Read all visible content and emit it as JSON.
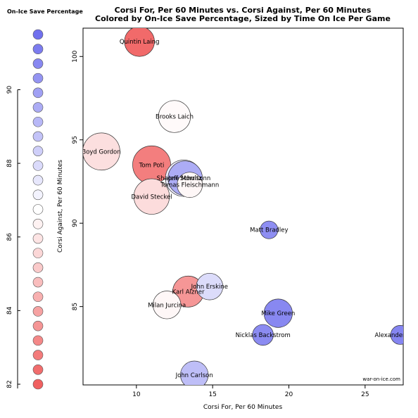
{
  "chart_data": {
    "type": "scatter",
    "title": "Corsi For, Per 60 Minutes vs. Corsi Against, Per 60 Minutes",
    "subtitle": "Colored by On-Ice Save Percentage, Sized by Time On Ice Per Game",
    "xlabel": "Corsi For, Per 60 Minutes",
    "ylabel": "Corsi Against, Per 60 Minutes",
    "xlim": [
      6.5,
      27.5
    ],
    "ylim": [
      80.3,
      101.7
    ],
    "x_ticks": [
      10,
      15,
      20,
      25
    ],
    "y_ticks": [
      85,
      90,
      95,
      100
    ],
    "credit": "war-on-ice.com",
    "legend": {
      "title": "On-Ice Save Percentage",
      "ticks": [
        82,
        84,
        86,
        88,
        90
      ],
      "range": [
        82,
        91.5
      ],
      "steps": 25
    },
    "points": [
      {
        "name": "Quintin Laing",
        "x": 10.2,
        "y": 100.9,
        "sv": 82.3,
        "toi": 0.55
      },
      {
        "name": "Brooks Laich",
        "x": 12.5,
        "y": 96.4,
        "sv": 86.6,
        "toi": 0.65
      },
      {
        "name": "Boyd Gordon",
        "x": 7.7,
        "y": 94.3,
        "sv": 85.8,
        "toi": 0.95
      },
      {
        "name": "Tom Poti",
        "x": 11.0,
        "y": 93.5,
        "sv": 82.9,
        "toi": 1.0
      },
      {
        "name": "Shaone Morrisonn",
        "x": 13.1,
        "y": 92.7,
        "sv": 87.4,
        "toi": 0.9
      },
      {
        "name": "Jeff Schultz",
        "x": 13.2,
        "y": 92.7,
        "sv": 89.5,
        "toi": 0.78
      },
      {
        "name": "Tomas Fleischmann",
        "x": 13.5,
        "y": 92.3,
        "sv": 86.5,
        "toi": 0.35
      },
      {
        "name": "David Steckel",
        "x": 11.0,
        "y": 91.6,
        "sv": 85.7,
        "toi": 0.85
      },
      {
        "name": "Matt Bradley",
        "x": 18.7,
        "y": 89.6,
        "sv": 90.5,
        "toi": 0.12
      },
      {
        "name": "John Erskine",
        "x": 14.8,
        "y": 86.2,
        "sv": 87.9,
        "toi": 0.4
      },
      {
        "name": "Karl Alzner",
        "x": 13.4,
        "y": 85.9,
        "sv": 83.6,
        "toi": 0.6
      },
      {
        "name": "Milan Jurcina",
        "x": 12.0,
        "y": 85.1,
        "sv": 86.5,
        "toi": 0.45
      },
      {
        "name": "Mike Green",
        "x": 19.3,
        "y": 84.6,
        "sv": 90.7,
        "toi": 0.48
      },
      {
        "name": "Nicklas Backstrom",
        "x": 18.3,
        "y": 83.3,
        "sv": 90.6,
        "toi": 0.2
      },
      {
        "name": "Alexander Semin",
        "x": 27.3,
        "y": 83.3,
        "sv": 90.8,
        "toi": 0.15
      },
      {
        "name": "John Carlson",
        "x": 13.8,
        "y": 80.9,
        "sv": 88.9,
        "toi": 0.45
      }
    ]
  }
}
